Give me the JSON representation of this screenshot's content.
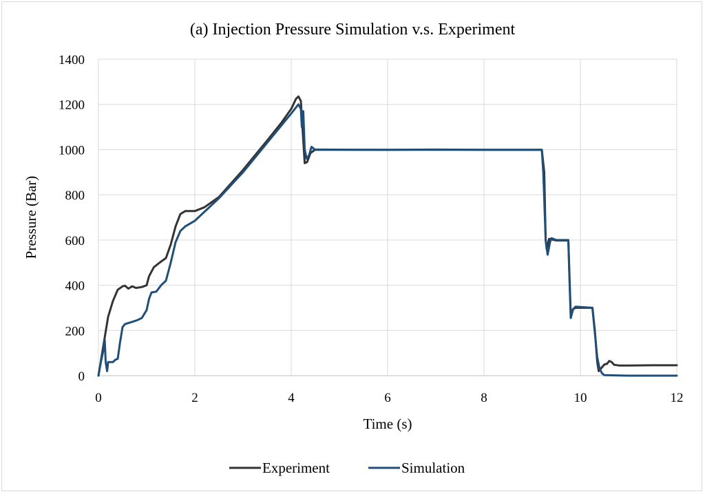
{
  "chart_data": {
    "type": "line",
    "title": "(a) Injection Pressure Simulation v.s. Experiment",
    "xlabel": "Time (s)",
    "ylabel": "Pressure (Bar)",
    "xlim": [
      0,
      12
    ],
    "ylim": [
      0,
      1400
    ],
    "xticks": [
      0,
      2,
      4,
      6,
      8,
      10,
      12
    ],
    "yticks": [
      0,
      200,
      400,
      600,
      800,
      1000,
      1200,
      1400
    ],
    "xtick_labels": [
      "0",
      "2",
      "4",
      "6",
      "8",
      "10",
      "12"
    ],
    "ytick_labels": [
      "0",
      "200",
      "400",
      "600",
      "800",
      "1000",
      "1200",
      "1400"
    ],
    "grid": true,
    "legend_position": "bottom",
    "series": [
      {
        "name": "Experiment",
        "color": "#333333",
        "points": [
          [
            0,
            0
          ],
          [
            0.1,
            130
          ],
          [
            0.2,
            260
          ],
          [
            0.3,
            330
          ],
          [
            0.4,
            380
          ],
          [
            0.5,
            395
          ],
          [
            0.55,
            398
          ],
          [
            0.62,
            385
          ],
          [
            0.7,
            395
          ],
          [
            0.78,
            388
          ],
          [
            0.9,
            392
          ],
          [
            1.0,
            400
          ],
          [
            1.05,
            440
          ],
          [
            1.15,
            480
          ],
          [
            1.3,
            505
          ],
          [
            1.4,
            520
          ],
          [
            1.5,
            580
          ],
          [
            1.6,
            660
          ],
          [
            1.7,
            715
          ],
          [
            1.8,
            728
          ],
          [
            2.0,
            728
          ],
          [
            2.2,
            745
          ],
          [
            2.5,
            790
          ],
          [
            3.0,
            910
          ],
          [
            3.5,
            1040
          ],
          [
            3.8,
            1120
          ],
          [
            4.0,
            1180
          ],
          [
            4.1,
            1225
          ],
          [
            4.15,
            1235
          ],
          [
            4.2,
            1215
          ],
          [
            4.25,
            1040
          ],
          [
            4.28,
            940
          ],
          [
            4.33,
            945
          ],
          [
            4.4,
            985
          ],
          [
            4.5,
            1000
          ],
          [
            6.0,
            999
          ],
          [
            7.0,
            1000
          ],
          [
            8.0,
            999
          ],
          [
            9.2,
            999
          ],
          [
            9.25,
            900
          ],
          [
            9.28,
            600
          ],
          [
            9.3,
            560
          ],
          [
            9.35,
            605
          ],
          [
            9.5,
            598
          ],
          [
            9.75,
            598
          ],
          [
            9.78,
            400
          ],
          [
            9.8,
            270
          ],
          [
            9.85,
            295
          ],
          [
            9.9,
            300
          ],
          [
            10.25,
            300
          ],
          [
            10.3,
            200
          ],
          [
            10.35,
            60
          ],
          [
            10.38,
            20
          ],
          [
            10.42,
            30
          ],
          [
            10.5,
            50
          ],
          [
            10.55,
            52
          ],
          [
            10.6,
            65
          ],
          [
            10.65,
            60
          ],
          [
            10.7,
            48
          ],
          [
            10.8,
            45
          ],
          [
            11.0,
            45
          ],
          [
            11.5,
            46
          ],
          [
            12.0,
            46
          ]
        ]
      },
      {
        "name": "Simulation",
        "color": "#1f4e79",
        "points": [
          [
            0,
            0
          ],
          [
            0.05,
            60
          ],
          [
            0.1,
            110
          ],
          [
            0.13,
            160
          ],
          [
            0.15,
            60
          ],
          [
            0.18,
            20
          ],
          [
            0.2,
            60
          ],
          [
            0.3,
            60
          ],
          [
            0.35,
            70
          ],
          [
            0.4,
            75
          ],
          [
            0.45,
            150
          ],
          [
            0.5,
            215
          ],
          [
            0.55,
            228
          ],
          [
            0.7,
            238
          ],
          [
            0.8,
            245
          ],
          [
            0.9,
            255
          ],
          [
            1.0,
            290
          ],
          [
            1.05,
            340
          ],
          [
            1.1,
            368
          ],
          [
            1.2,
            372
          ],
          [
            1.3,
            400
          ],
          [
            1.4,
            420
          ],
          [
            1.5,
            500
          ],
          [
            1.6,
            590
          ],
          [
            1.7,
            640
          ],
          [
            1.8,
            660
          ],
          [
            2.0,
            685
          ],
          [
            2.5,
            785
          ],
          [
            3.0,
            900
          ],
          [
            3.5,
            1030
          ],
          [
            4.0,
            1160
          ],
          [
            4.15,
            1200
          ],
          [
            4.2,
            1180
          ],
          [
            4.22,
            1100
          ],
          [
            4.25,
            1170
          ],
          [
            4.28,
            1000
          ],
          [
            4.32,
            960
          ],
          [
            4.37,
            975
          ],
          [
            4.42,
            1012
          ],
          [
            4.5,
            999
          ],
          [
            6.0,
            999
          ],
          [
            8.0,
            999
          ],
          [
            9.2,
            999
          ],
          [
            9.23,
            900
          ],
          [
            9.28,
            600
          ],
          [
            9.32,
            535
          ],
          [
            9.37,
            590
          ],
          [
            9.4,
            608
          ],
          [
            9.5,
            600
          ],
          [
            9.75,
            600
          ],
          [
            9.77,
            450
          ],
          [
            9.8,
            255
          ],
          [
            9.85,
            295
          ],
          [
            9.9,
            305
          ],
          [
            10.25,
            300
          ],
          [
            10.3,
            190
          ],
          [
            10.35,
            80
          ],
          [
            10.4,
            30
          ],
          [
            10.45,
            10
          ],
          [
            10.5,
            2
          ],
          [
            11.0,
            0
          ],
          [
            12.0,
            0
          ]
        ]
      }
    ]
  }
}
